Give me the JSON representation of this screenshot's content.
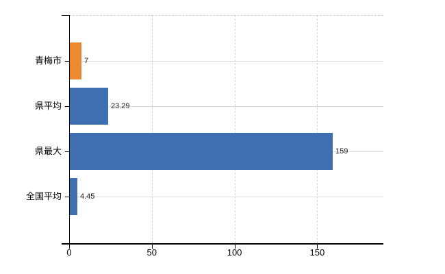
{
  "chart_data": {
    "type": "bar",
    "orientation": "horizontal",
    "title": "",
    "xlabel": "",
    "ylabel": "",
    "categories": [
      "青梅市",
      "県平均",
      "県最大",
      "全国平均"
    ],
    "values": [
      7,
      23.29,
      159,
      4.45
    ],
    "value_labels": [
      "7",
      "23.29",
      "159",
      "4.45"
    ],
    "bar_colors": [
      "#EB8A31",
      "#3E6FB0",
      "#3E6FB0",
      "#3E6FB0"
    ],
    "x_ticks": [
      0,
      50,
      100,
      150
    ],
    "x_tick_labels": [
      "0",
      "50",
      "100",
      "150"
    ],
    "xlim": [
      0,
      190
    ],
    "grid": true,
    "legend": "none",
    "colors": {
      "highlight_bar": "#EB8A31",
      "default_bar": "#3E6FB0",
      "category_line": "#D8E0D4",
      "v_gridline": "#D4D4D4",
      "top_border": "#CBCBCB",
      "axis": "#000000",
      "text": "#1A1A1A"
    }
  }
}
